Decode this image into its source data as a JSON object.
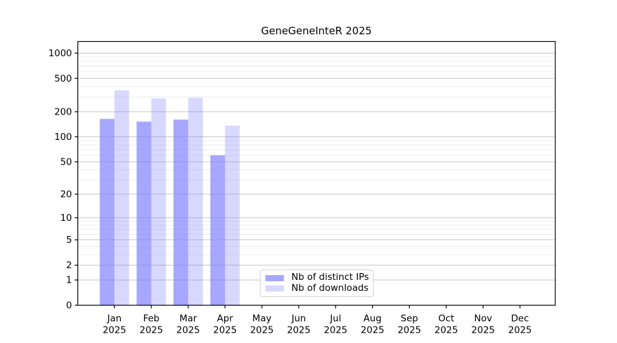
{
  "chart_data": {
    "type": "bar",
    "title": "GeneGeneInteR 2025",
    "year": "2025",
    "categories": [
      "Jan",
      "Feb",
      "Mar",
      "Apr",
      "May",
      "Jun",
      "Jul",
      "Aug",
      "Sep",
      "Oct",
      "Nov",
      "Dec"
    ],
    "x_tick_labels": [
      "Jan 2025",
      "Feb 2025",
      "Mar 2025",
      "Apr 2025",
      "May 2025",
      "Jun 2025",
      "Jul 2025",
      "Aug 2025",
      "Sep 2025",
      "Oct 2025",
      "Nov 2025",
      "Dec 2025"
    ],
    "series": [
      {
        "name": "Nb of distinct IPs",
        "color": "rgba(130,130,255,0.70)",
        "values": [
          164,
          152,
          161,
          60,
          0,
          0,
          0,
          0,
          0,
          0,
          0,
          0
        ]
      },
      {
        "name": "Nb of downloads",
        "color": "rgba(130,130,255,0.31)",
        "values": [
          360,
          289,
          293,
          136,
          0,
          0,
          0,
          0,
          0,
          0,
          0,
          0
        ]
      }
    ],
    "y_axis": {
      "scale": "log1p",
      "ticks": [
        0,
        1,
        2,
        5,
        10,
        20,
        50,
        100,
        200,
        500,
        1000
      ],
      "range": [
        0,
        1375
      ],
      "grid": "horizontal major and minor"
    },
    "legend": {
      "position": "bottom-center",
      "labels": [
        "Nb of distinct IPs",
        "Nb of downloads"
      ]
    },
    "colors": {
      "bar_base": "#8282ff",
      "major_grid": "#c6c6c6",
      "minor_grid": "#ececec",
      "spine": "#000000",
      "text": "#000000",
      "background": "#ffffff"
    }
  }
}
